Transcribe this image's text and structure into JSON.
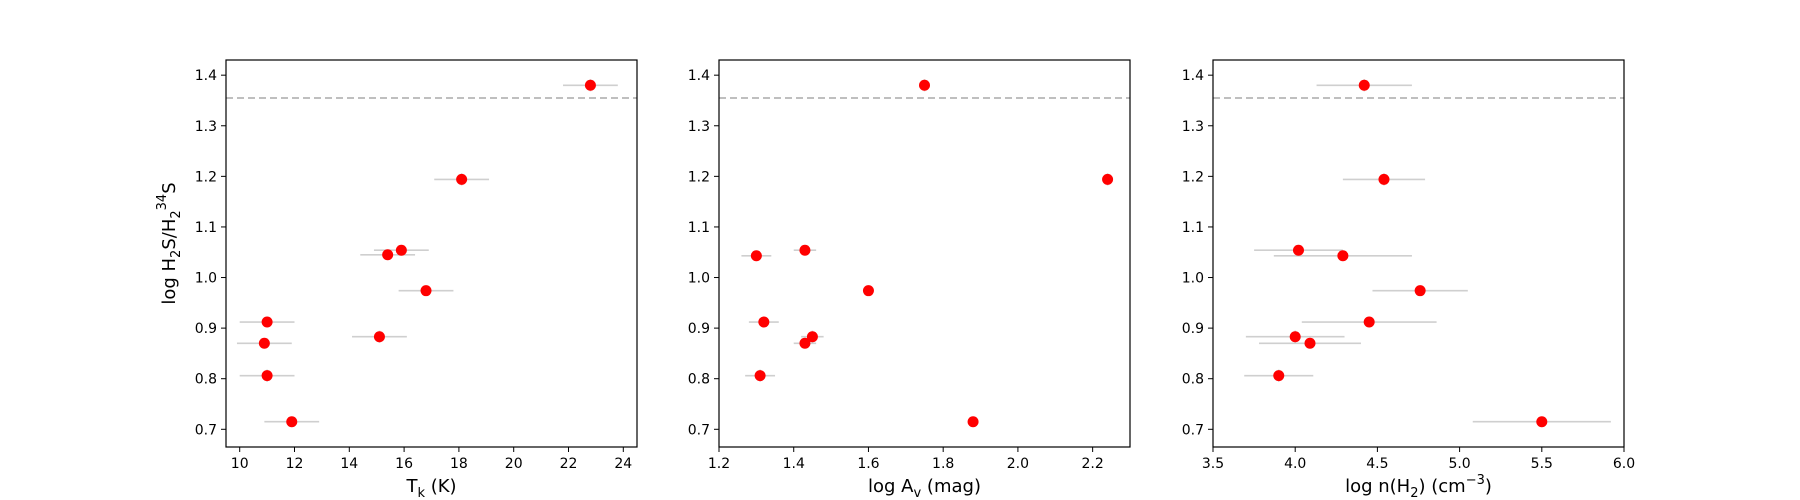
{
  "figure": {
    "colors": {
      "marker": "#ff0000",
      "error_bar": "#cfcfcf",
      "reference_line": "#aaaaaa"
    }
  },
  "chart_data": [
    {
      "type": "scatter",
      "title": "",
      "xlabel": "T",
      "xlabel_sub": "k",
      "xlabel_tail": " (K)",
      "ylabel": {
        "prefix": "log H",
        "sub1": "2",
        "mid": "S/H",
        "sub2": "2",
        "sup": "34",
        "suffix": "S"
      },
      "xlim": [
        9.5,
        24.5
      ],
      "ylim": [
        0.665,
        1.43
      ],
      "xticks": [
        10,
        12,
        14,
        16,
        18,
        20,
        22,
        24
      ],
      "xtick_labels": [
        "10",
        "12",
        "14",
        "16",
        "18",
        "20",
        "22",
        "24"
      ],
      "yticks": [
        0.7,
        0.8,
        0.9,
        1.0,
        1.1,
        1.2,
        1.3,
        1.4
      ],
      "ytick_labels": [
        "0.7",
        "0.8",
        "0.9",
        "1.0",
        "1.1",
        "1.2",
        "1.3",
        "1.4"
      ],
      "reference_y": 1.355,
      "points": [
        {
          "x": 11.0,
          "y": 0.912,
          "xerr": 1.0,
          "yerr": 0.01
        },
        {
          "x": 10.9,
          "y": 0.87,
          "xerr": 1.0,
          "yerr": 0.01
        },
        {
          "x": 11.0,
          "y": 0.806,
          "xerr": 1.0,
          "yerr": 0.012
        },
        {
          "x": 11.9,
          "y": 0.715,
          "xerr": 1.0,
          "yerr": 0.01
        },
        {
          "x": 15.1,
          "y": 0.883,
          "xerr": 1.0,
          "yerr": 0.012
        },
        {
          "x": 15.4,
          "y": 1.045,
          "xerr": 1.0,
          "yerr": 0.01
        },
        {
          "x": 15.9,
          "y": 1.054,
          "xerr": 1.0,
          "yerr": 0.01
        },
        {
          "x": 16.8,
          "y": 0.974,
          "xerr": 1.0,
          "yerr": 0.01
        },
        {
          "x": 18.1,
          "y": 1.194,
          "xerr": 1.0,
          "yerr": 0.012
        },
        {
          "x": 22.8,
          "y": 1.38,
          "xerr": 1.0,
          "yerr": 0.012
        }
      ]
    },
    {
      "type": "scatter",
      "title": "",
      "xlabel": "log A",
      "xlabel_sub": "v",
      "xlabel_tail": " (mag)",
      "ylabel": null,
      "xlim": [
        1.2,
        2.3
      ],
      "ylim": [
        0.665,
        1.43
      ],
      "xticks": [
        1.2,
        1.4,
        1.6,
        1.8,
        2.0,
        2.2
      ],
      "xtick_labels": [
        "1.2",
        "1.4",
        "1.6",
        "1.8",
        "2.0",
        "2.2"
      ],
      "yticks": [
        0.7,
        0.8,
        0.9,
        1.0,
        1.1,
        1.2,
        1.3,
        1.4
      ],
      "ytick_labels": [
        "0.7",
        "0.8",
        "0.9",
        "1.0",
        "1.1",
        "1.2",
        "1.3",
        "1.4"
      ],
      "reference_y": 1.355,
      "points": [
        {
          "x": 1.3,
          "y": 1.043,
          "xerr": 0.04,
          "yerr": 0.01
        },
        {
          "x": 1.43,
          "y": 1.054,
          "xerr": 0.03,
          "yerr": 0.01
        },
        {
          "x": 1.32,
          "y": 0.912,
          "xerr": 0.04,
          "yerr": 0.01
        },
        {
          "x": 1.43,
          "y": 0.87,
          "xerr": 0.03,
          "yerr": 0.01
        },
        {
          "x": 1.45,
          "y": 0.883,
          "xerr": 0.03,
          "yerr": 0.012
        },
        {
          "x": 1.31,
          "y": 0.806,
          "xerr": 0.04,
          "yerr": 0.012
        },
        {
          "x": 1.6,
          "y": 0.974,
          "xerr": 0.01,
          "yerr": 0.01
        },
        {
          "x": 1.75,
          "y": 1.38,
          "xerr": 0.01,
          "yerr": 0.012
        },
        {
          "x": 1.88,
          "y": 0.715,
          "xerr": 0.01,
          "yerr": 0.01
        },
        {
          "x": 2.24,
          "y": 1.194,
          "xerr": 0.01,
          "yerr": 0.012
        }
      ]
    },
    {
      "type": "scatter",
      "title": "",
      "xlabel": "log n(H",
      "xlabel_sub": "2",
      "xlabel_tail": ") (cm",
      "xlabel_sup": "−3",
      "xlabel_end": ")",
      "ylabel": null,
      "xlim": [
        3.5,
        6.0
      ],
      "ylim": [
        0.665,
        1.43
      ],
      "xticks": [
        3.5,
        4.0,
        4.5,
        5.0,
        5.5,
        6.0
      ],
      "xtick_labels": [
        "3.5",
        "4.0",
        "4.5",
        "5.0",
        "5.5",
        "6.0"
      ],
      "yticks": [
        0.7,
        0.8,
        0.9,
        1.0,
        1.1,
        1.2,
        1.3,
        1.4
      ],
      "ytick_labels": [
        "0.7",
        "0.8",
        "0.9",
        "1.0",
        "1.1",
        "1.2",
        "1.3",
        "1.4"
      ],
      "reference_y": 1.355,
      "points": [
        {
          "x": 4.42,
          "y": 1.38,
          "xerr": 0.29,
          "yerr": 0.012
        },
        {
          "x": 4.54,
          "y": 1.194,
          "xerr": 0.25,
          "yerr": 0.012
        },
        {
          "x": 4.02,
          "y": 1.054,
          "xerr": 0.27,
          "yerr": 0.01
        },
        {
          "x": 4.29,
          "y": 1.043,
          "xerr": 0.42,
          "yerr": 0.01
        },
        {
          "x": 4.76,
          "y": 0.974,
          "xerr": 0.29,
          "yerr": 0.01
        },
        {
          "x": 4.45,
          "y": 0.912,
          "xerr": 0.41,
          "yerr": 0.01
        },
        {
          "x": 4.0,
          "y": 0.883,
          "xerr": 0.3,
          "yerr": 0.012
        },
        {
          "x": 4.09,
          "y": 0.87,
          "xerr": 0.31,
          "yerr": 0.01
        },
        {
          "x": 3.9,
          "y": 0.806,
          "xerr": 0.21,
          "yerr": 0.012
        },
        {
          "x": 5.5,
          "y": 0.715,
          "xerr": 0.42,
          "yerr": 0.01
        }
      ]
    }
  ]
}
